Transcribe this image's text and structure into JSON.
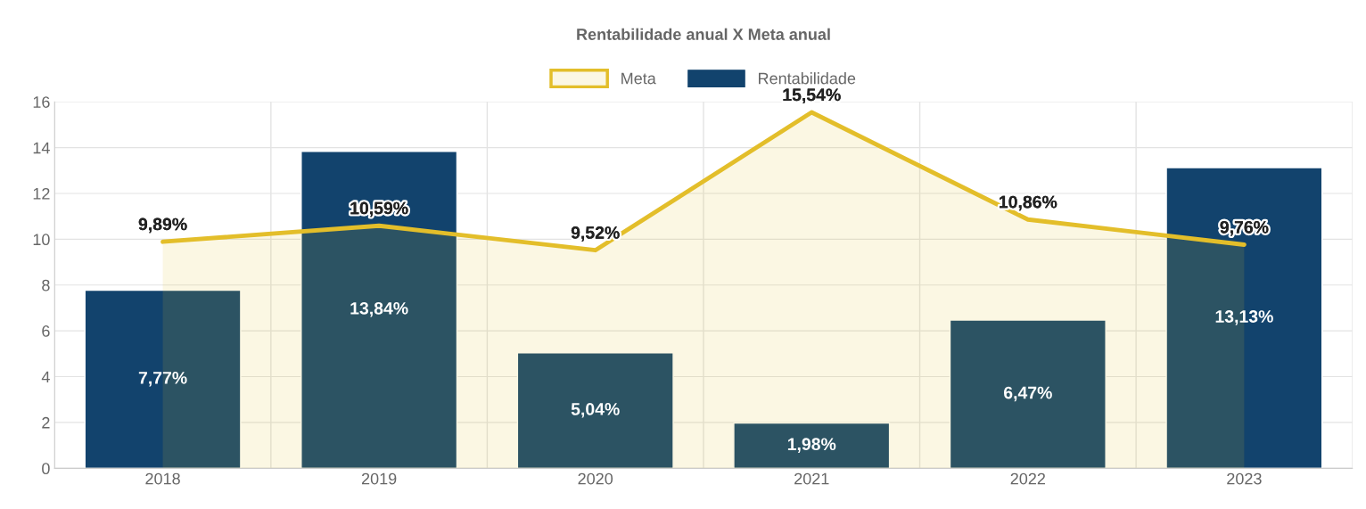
{
  "chart_data": {
    "type": "bar",
    "title": "Rentabilidade anual X Meta anual",
    "categories": [
      "2018",
      "2019",
      "2020",
      "2021",
      "2022",
      "2023"
    ],
    "series": [
      {
        "name": "Meta",
        "type": "area",
        "color": "#e3be2a",
        "values": [
          9.89,
          10.59,
          9.52,
          15.54,
          10.86,
          9.76
        ],
        "value_labels": [
          "9,89%",
          "10,59%",
          "9,52%",
          "15,54%",
          "10,86%",
          "9,76%"
        ]
      },
      {
        "name": "Rentabilidade",
        "color": "#12436d",
        "values": [
          7.77,
          13.84,
          5.04,
          1.98,
          6.47,
          13.13
        ],
        "value_labels": [
          "7,77%",
          "13,84%",
          "5,04%",
          "1,98%",
          "6,47%",
          "13,13%"
        ]
      }
    ],
    "ylim": [
      0,
      16
    ],
    "yticks": [
      0,
      2,
      4,
      6,
      8,
      10,
      12,
      14,
      16
    ],
    "grid": true,
    "legend": "top",
    "marker": "none",
    "line_style": "solid"
  }
}
